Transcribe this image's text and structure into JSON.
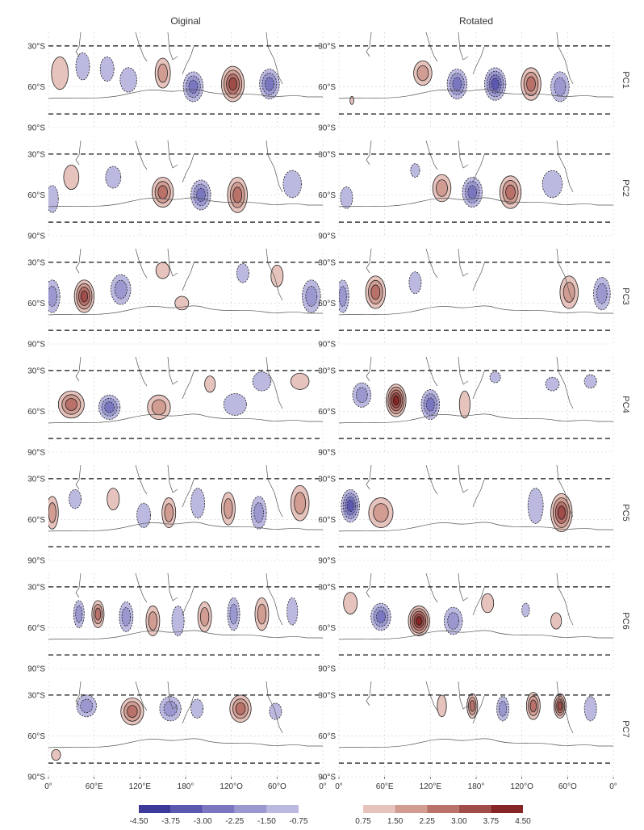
{
  "chart_data": {
    "type": "heatmap",
    "columns": [
      "Oiginal",
      "Rotated"
    ],
    "rows": [
      "PC1",
      "PC2",
      "PC3",
      "PC4",
      "PC5",
      "PC6",
      "PC7"
    ],
    "x_ticks": [
      "0°",
      "60°E",
      "120°E",
      "180°",
      "120°O",
      "60°O",
      "0°"
    ],
    "x_tick_values": [
      0,
      60,
      120,
      180,
      240,
      300,
      360
    ],
    "y_ticks": [
      "30°S",
      "60°S",
      "90°S"
    ],
    "y_tick_values": [
      -30,
      -60,
      -90
    ],
    "xlim": [
      0,
      360
    ],
    "ylim": [
      -90,
      -20
    ],
    "domain_box_lat": [
      -30,
      -80
    ],
    "legend_negative": {
      "labels": [
        "-4.50",
        "-3.75",
        "-3.00",
        "-2.25",
        "-1.50",
        "-0.75"
      ],
      "colors": [
        "#3b3a98",
        "#5c58b0",
        "#7a77c0",
        "#9b98d0",
        "#bcb9e0"
      ]
    },
    "legend_positive": {
      "labels": [
        "0.75",
        "1.50",
        "2.25",
        "3.00",
        "3.75",
        "4.50"
      ],
      "colors": [
        "#e6c3bd",
        "#d19d93",
        "#b9716a",
        "#a04c48",
        "#862525"
      ]
    },
    "panels": [
      [
        {
          "anomalies": [
            [
              15,
              -50,
              11,
              12,
              1
            ],
            [
              45,
              -45,
              9,
              10,
              -1
            ],
            [
              77,
              -47,
              9,
              9,
              -1
            ],
            [
              105,
              -55,
              11,
              9,
              -1
            ],
            [
              150,
              -50,
              10,
              11,
              2
            ],
            [
              190,
              -60,
              13,
              11,
              -3
            ],
            [
              242,
              -58,
              15,
              13,
              4
            ],
            [
              290,
              -58,
              13,
              11,
              -3
            ]
          ]
        },
        {
          "anomalies": [
            [
              17,
              -70,
              2.5,
              3,
              1
            ],
            [
              110,
              -50,
              12,
              9,
              2
            ],
            [
              155,
              -58,
              13,
              11,
              -3
            ],
            [
              205,
              -58,
              14,
              12,
              -4
            ],
            [
              252,
              -58,
              13,
              12,
              3
            ],
            [
              290,
              -60,
              12,
              11,
              -2
            ]
          ]
        }
      ],
      [
        {
          "anomalies": [
            [
              5,
              -63,
              8,
              10,
              -1
            ],
            [
              30,
              -47,
              10,
              9,
              1
            ],
            [
              85,
              -47,
              10,
              8,
              -1
            ],
            [
              150,
              -58,
              14,
              11,
              3
            ],
            [
              200,
              -60,
              13,
              11,
              -3
            ],
            [
              248,
              -60,
              13,
              13,
              3
            ],
            [
              320,
              -52,
              12,
              10,
              -1
            ]
          ]
        },
        {
          "anomalies": [
            [
              10,
              -62,
              8,
              8,
              -1
            ],
            [
              100,
              -42,
              6,
              5,
              -1
            ],
            [
              135,
              -55,
              12,
              10,
              2
            ],
            [
              175,
              -58,
              13,
              11,
              -3
            ],
            [
              225,
              -58,
              14,
              12,
              3
            ],
            [
              280,
              -52,
              13,
              10,
              -1
            ]
          ]
        }
      ],
      [
        {
          "anomalies": [
            [
              5,
              -55,
              10,
              12,
              -2
            ],
            [
              47,
              -55,
              13,
              12,
              4
            ],
            [
              95,
              -50,
              13,
              11,
              -2
            ],
            [
              150,
              -36,
              9,
              6,
              1
            ],
            [
              175,
              -60,
              9,
              5,
              1
            ],
            [
              255,
              -38,
              8,
              7,
              -1
            ],
            [
              300,
              -40,
              8,
              8,
              1
            ],
            [
              345,
              -55,
              12,
              12,
              -2
            ]
          ]
        },
        {
          "anomalies": [
            [
              5,
              -55,
              8,
              12,
              -2
            ],
            [
              48,
              -52,
              13,
              12,
              3
            ],
            [
              100,
              -45,
              8,
              8,
              -1
            ],
            [
              302,
              -52,
              12,
              12,
              2
            ],
            [
              345,
              -53,
              11,
              12,
              -2
            ]
          ]
        }
      ],
      [
        {
          "anomalies": [
            [
              30,
              -55,
              17,
              10,
              3
            ],
            [
              80,
              -57,
              14,
              9,
              -3
            ],
            [
              145,
              -57,
              15,
              9,
              2
            ],
            [
              212,
              -40,
              7,
              6,
              1
            ],
            [
              245,
              -55,
              15,
              8,
              -1
            ],
            [
              280,
              -38,
              12,
              7,
              -1
            ],
            [
              330,
              -38,
              12,
              6,
              1
            ]
          ]
        },
        {
          "anomalies": [
            [
              30,
              -48,
              12,
              9,
              -2
            ],
            [
              75,
              -52,
              13,
              12,
              5
            ],
            [
              120,
              -55,
              12,
              11,
              -3
            ],
            [
              165,
              -55,
              7,
              10,
              1
            ],
            [
              205,
              -35,
              7,
              4,
              -1
            ],
            [
              280,
              -40,
              9,
              5,
              -1
            ],
            [
              330,
              -38,
              8,
              5,
              -1
            ]
          ]
        }
      ],
      [
        {
          "anomalies": [
            [
              5,
              -55,
              8,
              12,
              2
            ],
            [
              35,
              -45,
              8,
              7,
              -1
            ],
            [
              85,
              -45,
              8,
              8,
              1
            ],
            [
              125,
              -57,
              9,
              9,
              -1
            ],
            [
              158,
              -55,
              9,
              11,
              2
            ],
            [
              196,
              -48,
              9,
              11,
              -1
            ],
            [
              236,
              -52,
              9,
              12,
              2
            ],
            [
              276,
              -55,
              10,
              12,
              -2
            ],
            [
              330,
              -48,
              12,
              13,
              2
            ]
          ]
        },
        {
          "anomalies": [
            [
              15,
              -50,
              12,
              12,
              -4
            ],
            [
              55,
              -55,
              16,
              11,
              2
            ],
            [
              258,
              -50,
              10,
              13,
              -1
            ],
            [
              292,
              -55,
              14,
              14,
              4
            ]
          ]
        }
      ],
      [
        {
          "anomalies": [
            [
              40,
              -50,
              7,
              10,
              -2
            ],
            [
              65,
              -50,
              8,
              10,
              3
            ],
            [
              102,
              -52,
              9,
              11,
              -2
            ],
            [
              137,
              -55,
              9,
              11,
              2
            ],
            [
              170,
              -55,
              8,
              11,
              -1
            ],
            [
              205,
              -52,
              9,
              11,
              2
            ],
            [
              243,
              -50,
              8,
              12,
              -2
            ],
            [
              280,
              -50,
              9,
              12,
              2
            ],
            [
              320,
              -48,
              7,
              10,
              -1
            ]
          ]
        },
        {
          "anomalies": [
            [
              15,
              -42,
              9,
              8,
              1
            ],
            [
              55,
              -52,
              13,
              10,
              -3
            ],
            [
              105,
              -55,
              14,
              11,
              5
            ],
            [
              150,
              -55,
              12,
              10,
              -2
            ],
            [
              195,
              -42,
              8,
              7,
              1
            ],
            [
              245,
              -47,
              5,
              5,
              -1
            ],
            [
              285,
              -55,
              7,
              6,
              1
            ]
          ]
        }
      ],
      [
        {
          "anomalies": [
            [
              50,
              -38,
              13,
              8,
              -2
            ],
            [
              110,
              -42,
              15,
              10,
              3
            ],
            [
              160,
              -40,
              14,
              9,
              -2
            ],
            [
              195,
              -40,
              8,
              7,
              -1
            ],
            [
              252,
              -40,
              14,
              10,
              3
            ],
            [
              298,
              -42,
              8,
              6,
              -1
            ],
            [
              10,
              -74,
              6,
              4,
              1
            ]
          ]
        },
        {
          "anomalies": [
            [
              135,
              -38,
              6,
              8,
              1
            ],
            [
              175,
              -38,
              7,
              9,
              3
            ],
            [
              215,
              -40,
              8,
              9,
              -2
            ],
            [
              255,
              -38,
              9,
              10,
              3
            ],
            [
              290,
              -38,
              8,
              9,
              4
            ],
            [
              330,
              -40,
              8,
              9,
              -1
            ]
          ]
        }
      ]
    ]
  }
}
